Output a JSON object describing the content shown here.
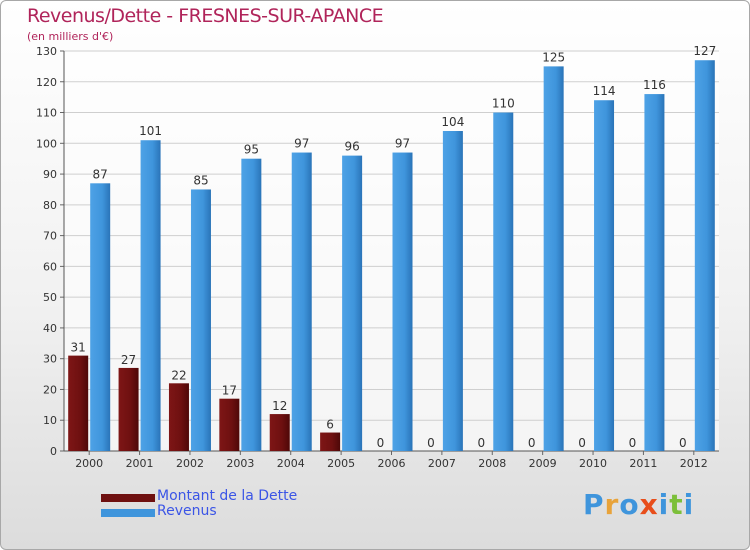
{
  "chart_data": {
    "type": "bar",
    "title": "Revenus/Dette - FRESNES-SUR-APANCE",
    "subtitle": "(en milliers d'€)",
    "categories": [
      "2000",
      "2001",
      "2002",
      "2003",
      "2004",
      "2005",
      "2006",
      "2007",
      "2008",
      "2009",
      "2010",
      "2011",
      "2012"
    ],
    "series": [
      {
        "name": "Montant de la Dette",
        "color": "#6e1010",
        "values": [
          31,
          27,
          22,
          17,
          12,
          6,
          0,
          0,
          0,
          0,
          0,
          0,
          0
        ]
      },
      {
        "name": "Revenus",
        "color": "#3f95dc",
        "values": [
          87,
          101,
          85,
          95,
          97,
          96,
          97,
          104,
          110,
          125,
          114,
          116,
          127
        ]
      }
    ],
    "ylim": [
      0,
      130
    ],
    "yticks": [
      0,
      10,
      20,
      30,
      40,
      50,
      60,
      70,
      80,
      90,
      100,
      110,
      120,
      130
    ],
    "grid": true,
    "legend_position": "bottom-left"
  },
  "colors": {
    "title": "#b0245a",
    "legend_text": "#3b55e6",
    "grid": "#cfcfcf",
    "axis_text": "#333333",
    "value_label": "#333333"
  },
  "legend": {
    "items": [
      {
        "label": "Montant de la Dette",
        "color": "#6e1010"
      },
      {
        "label": "Revenus",
        "color": "#3f95dc"
      }
    ]
  },
  "logo": {
    "text": "Proxiti",
    "letter_colors": [
      "#3f95dc",
      "#e8a33a",
      "#3f95dc",
      "#e84e1b",
      "#3f95dc",
      "#7cbf3a",
      "#3f95dc"
    ]
  }
}
